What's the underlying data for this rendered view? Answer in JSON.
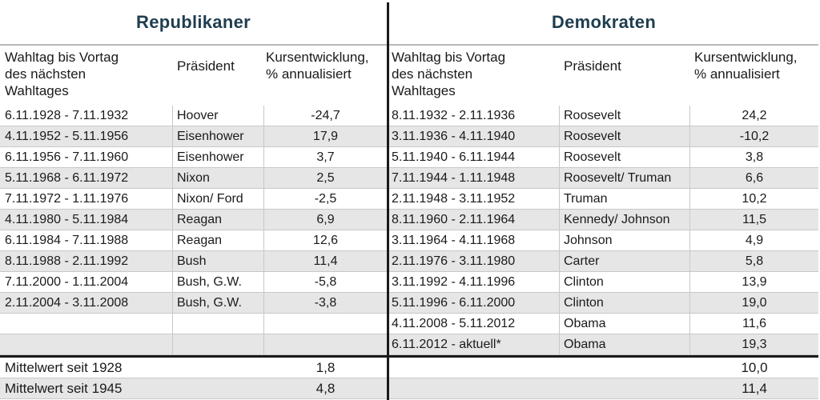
{
  "republicans": {
    "title": "Republikaner",
    "headers": {
      "period": [
        "Wahltag bis Vortag",
        "des nächsten",
        "Wahltages"
      ],
      "president": "Präsident",
      "performance": [
        "Kursentwicklung,",
        "% annualisiert"
      ]
    },
    "rows": [
      {
        "period": "6.11.1928 - 7.11.1932",
        "president": "Hoover",
        "value": "-24,7"
      },
      {
        "period": "4.11.1952 - 5.11.1956",
        "president": "Eisenhower",
        "value": "17,9"
      },
      {
        "period": "6.11.1956 - 7.11.1960",
        "president": "Eisenhower",
        "value": "3,7"
      },
      {
        "period": "5.11.1968 - 6.11.1972",
        "president": "Nixon",
        "value": "2,5"
      },
      {
        "period": "7.11.1972 - 1.11.1976",
        "president": "Nixon/ Ford",
        "value": "-2,5"
      },
      {
        "period": "4.11.1980 - 5.11.1984",
        "president": "Reagan",
        "value": "6,9"
      },
      {
        "period": "6.11.1984 - 7.11.1988",
        "president": "Reagan",
        "value": "12,6"
      },
      {
        "period": "8.11.1988 - 2.11.1992",
        "president": "Bush",
        "value": "11,4"
      },
      {
        "period": "7.11.2000 - 1.11.2004",
        "president": "Bush, G.W.",
        "value": "-5,8"
      },
      {
        "period": "2.11.2004 - 3.11.2008",
        "president": "Bush, G.W.",
        "value": "-3,8"
      },
      {
        "period": "",
        "president": "",
        "value": ""
      },
      {
        "period": "",
        "president": "",
        "value": ""
      }
    ],
    "summary": [
      {
        "label": "Mittelwert seit 1928",
        "value": "1,8"
      },
      {
        "label": "Mittelwert seit 1945",
        "value": "4,8"
      }
    ]
  },
  "democrats": {
    "title": "Demokraten",
    "headers": {
      "period": [
        "Wahltag bis Vortag",
        "des nächsten",
        "Wahltages"
      ],
      "president": "Präsident",
      "performance": [
        "Kursentwicklung,",
        "% annualisiert"
      ]
    },
    "rows": [
      {
        "period": "8.11.1932 - 2.11.1936",
        "president": "Roosevelt",
        "value": "24,2"
      },
      {
        "period": "3.11.1936 - 4.11.1940",
        "president": "Roosevelt",
        "value": "-10,2"
      },
      {
        "period": "5.11.1940 - 6.11.1944",
        "president": "Roosevelt",
        "value": "3,8"
      },
      {
        "period": "7.11.1944 - 1.11.1948",
        "president": "Roosevelt/ Truman",
        "value": "6,6"
      },
      {
        "period": "2.11.1948 - 3.11.1952",
        "president": "Truman",
        "value": "10,2"
      },
      {
        "period": "8.11.1960 - 2.11.1964",
        "president": "Kennedy/ Johnson",
        "value": "11,5"
      },
      {
        "period": "3.11.1964 - 4.11.1968",
        "president": "Johnson",
        "value": "4,9"
      },
      {
        "period": "2.11.1976 - 3.11.1980",
        "president": "Carter",
        "value": "5,8"
      },
      {
        "period": "3.11.1992 - 4.11.1996",
        "president": "Clinton",
        "value": "13,9"
      },
      {
        "period": "5.11.1996 - 6.11.2000",
        "president": "Clinton",
        "value": "19,0"
      },
      {
        "period": "4.11.2008 - 5.11.2012",
        "president": "Obama",
        "value": "11,6"
      },
      {
        "period": "6.11.2012 - aktuell*",
        "president": "Obama",
        "value": "19,3"
      }
    ],
    "summary": [
      {
        "label": "",
        "value": "10,0"
      },
      {
        "label": "",
        "value": "11,4"
      }
    ]
  }
}
